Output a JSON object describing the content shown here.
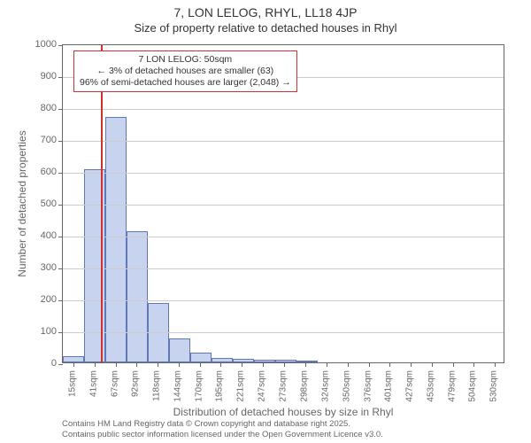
{
  "title": "7, LON LELOG, RHYL, LL18 4JP",
  "subtitle": "Size of property relative to detached houses in Rhyl",
  "ylabel": "Number of detached properties",
  "xlabel": "Distribution of detached houses by size in Rhyl",
  "footer_line1": "Contains HM Land Registry data © Crown copyright and database right 2025.",
  "footer_line2": "Contains public sector information licensed under the Open Government Licence v3.0.",
  "chart": {
    "type": "histogram",
    "background_color": "#ffffff",
    "plot_border_color": "#666666",
    "grid_color": "#cccccc",
    "bar_fill": "#c8d4ef",
    "bar_border": "#6078b3",
    "marker_line_color": "#d03030",
    "info_box_border": "#d03030",
    "label_color": "#666666",
    "title_fontsize": 14,
    "subtitle_fontsize": 13,
    "axis_label_fontsize": 12,
    "tick_fontsize": 11,
    "xtick_fontsize": 10,
    "footer_fontsize": 9.5,
    "ylim": [
      0,
      1000
    ],
    "ytick_step": 100,
    "xlim": [
      2,
      543
    ],
    "xticks": [
      15,
      41,
      67,
      92,
      118,
      144,
      170,
      195,
      221,
      247,
      273,
      298,
      324,
      350,
      376,
      401,
      427,
      453,
      479,
      504,
      530
    ],
    "xtick_unit": "sqm",
    "bin_width_sqm": 25.7,
    "bars": [
      {
        "start": 2,
        "value": 20
      },
      {
        "start": 28,
        "value": 605
      },
      {
        "start": 54,
        "value": 770
      },
      {
        "start": 80,
        "value": 410
      },
      {
        "start": 106,
        "value": 185
      },
      {
        "start": 132,
        "value": 75
      },
      {
        "start": 158,
        "value": 30
      },
      {
        "start": 184,
        "value": 15
      },
      {
        "start": 210,
        "value": 12
      },
      {
        "start": 236,
        "value": 8
      },
      {
        "start": 262,
        "value": 8
      },
      {
        "start": 288,
        "value": 4
      }
    ],
    "marker": {
      "x_sqm": 50,
      "title": "7 LON LELOG: 50sqm",
      "line2": "← 3% of detached houses are smaller (63)",
      "line3": "96% of semi-detached houses are larger (2,048) →"
    }
  }
}
